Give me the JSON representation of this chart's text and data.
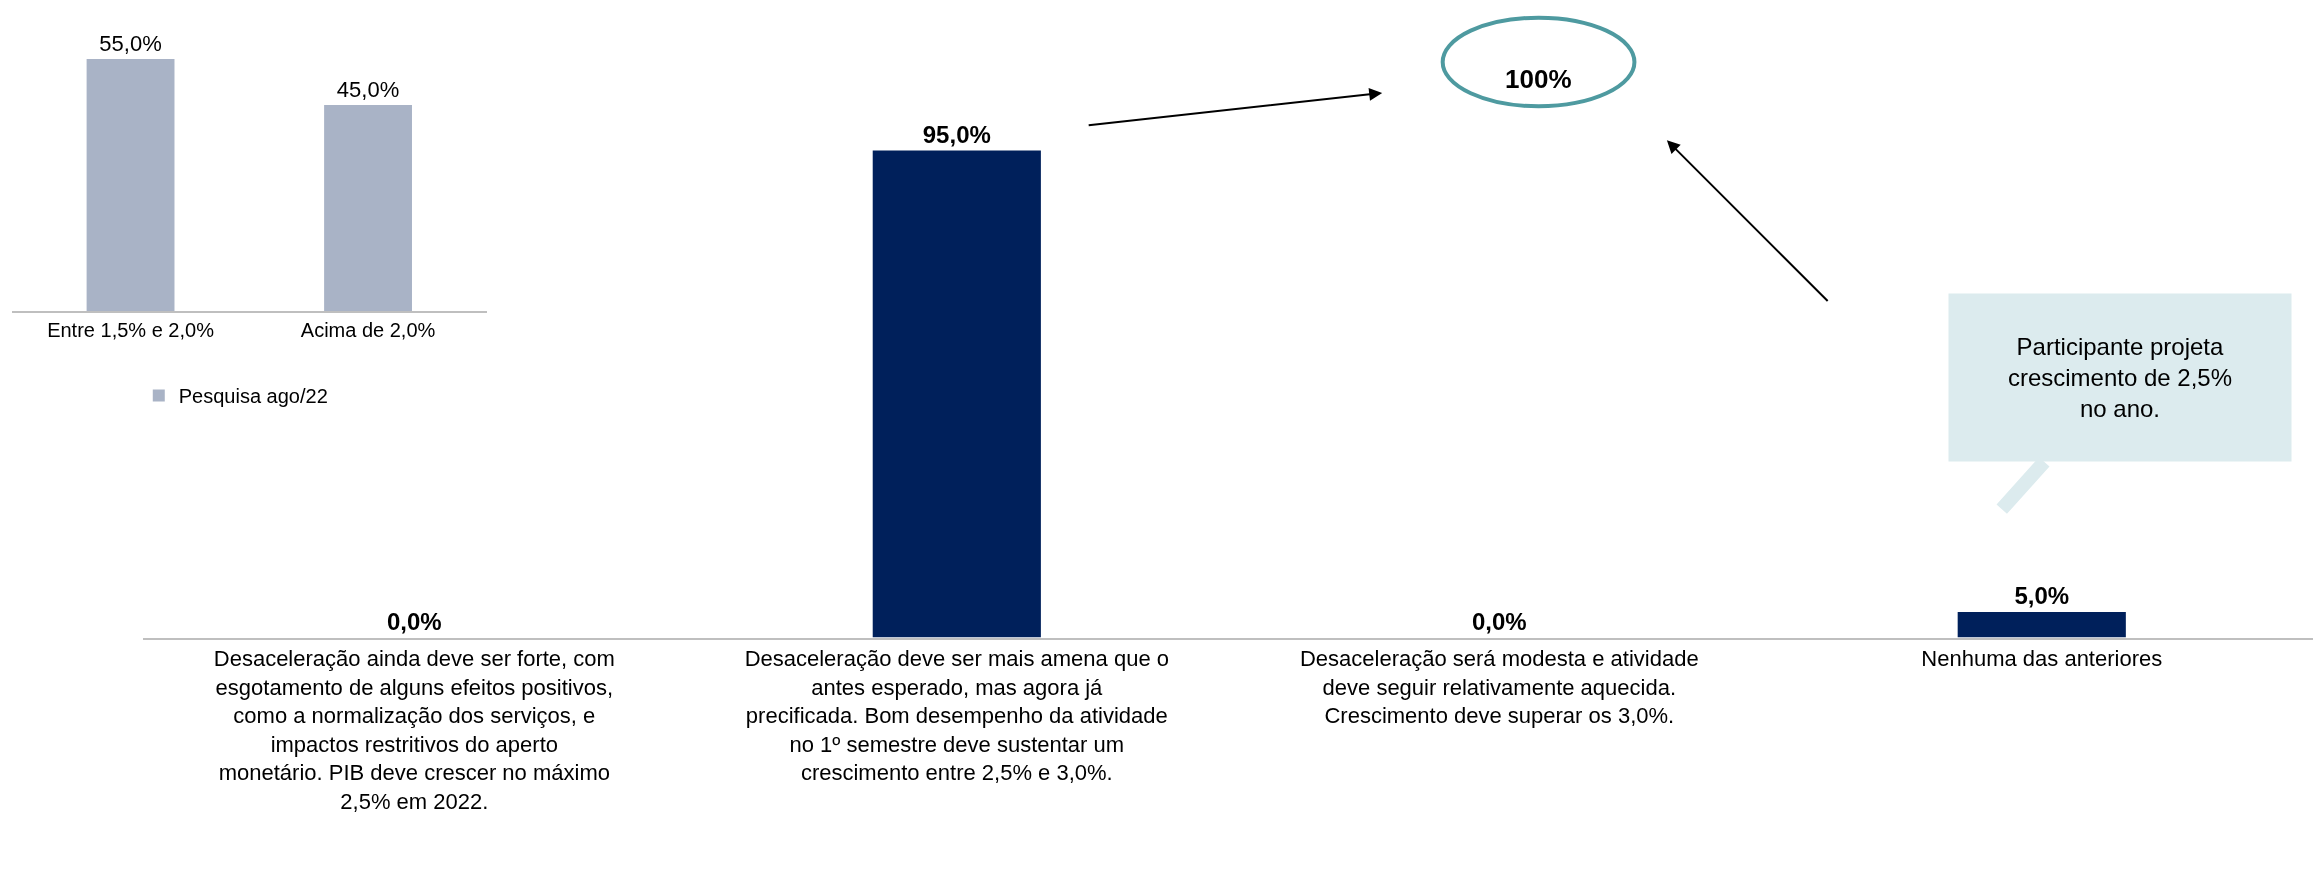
{
  "chart_data": [
    {
      "type": "bar",
      "categories": [
        "Entre 1,5% e 2,0%",
        "Acima de 2,0%"
      ],
      "series": [
        {
          "name": "Pesquisa ago/22",
          "color": "#a9b3c6",
          "values": [
            55.0,
            45.0
          ],
          "value_labels": [
            "55,0%",
            "45,0%"
          ]
        }
      ],
      "legend": "bottom"
    },
    {
      "type": "bar",
      "categories": [
        "Desaceleração ainda deve ser forte, com esgotamento de alguns efeitos positivos, como a normalização dos serviços, e impactos restritivos do aperto monetário. PIB deve crescer no máximo 2,5% em 2022.",
        "Desaceleração deve ser mais amena que o antes esperado, mas agora já precificada. Bom desempenho da atividade no 1º semestre deve sustentar um crescimento entre 2,5% e 3,0%.",
        "Desaceleração será modesta e atividade deve seguir relativamente aquecida. Crescimento deve superar os 3,0%.",
        "Nenhuma das anteriores"
      ],
      "series": [
        {
          "color": "#00205b",
          "values": [
            0.0,
            95.0,
            0.0,
            5.0
          ],
          "value_labels": [
            "0,0%",
            "95,0%",
            "0,0%",
            "5,0%"
          ]
        }
      ],
      "legend": false,
      "annotations": [
        "100%",
        "Participante projeta crescimento de 2,5% no ano."
      ]
    }
  ]
}
